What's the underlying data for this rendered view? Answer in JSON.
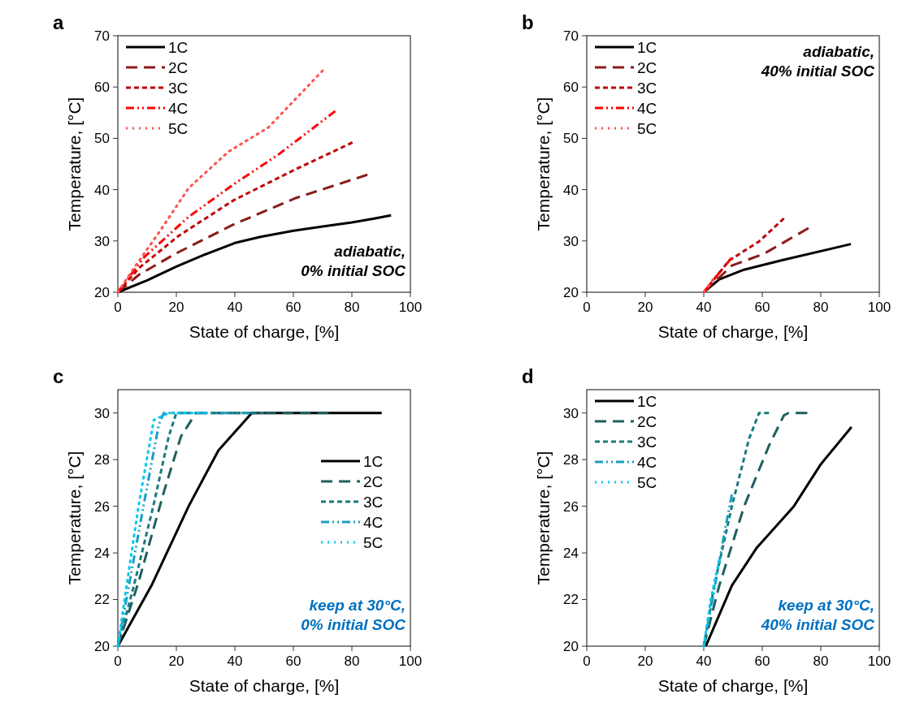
{
  "chart_data": [
    {
      "type": "line",
      "title": "a",
      "xlabel": "State of charge, [%]",
      "ylabel": "Temperature, [°C]",
      "xlim": [
        0,
        100
      ],
      "ylim": [
        20,
        70
      ],
      "xticks": [
        0,
        20,
        40,
        60,
        80,
        100
      ],
      "yticks": [
        20,
        30,
        40,
        50,
        60,
        70
      ],
      "legend": "top left",
      "annotations": [
        "adiabatic,",
        "0% initial SOC"
      ],
      "series": [
        {
          "name": "1C",
          "color": "#000000",
          "line_style": "solid",
          "x": [
            0,
            10,
            20,
            30,
            40,
            48.8,
            60,
            70,
            80,
            88,
            93.4
          ],
          "values": [
            20,
            22.3,
            25,
            27.4,
            29.6,
            30.8,
            32,
            32.8,
            33.6,
            34.4,
            35
          ]
        },
        {
          "name": "2C",
          "color": "#8b1a1a",
          "line_style": "dashed",
          "x": [
            0,
            7.2,
            20,
            39.5,
            61,
            85.3
          ],
          "values": [
            20,
            23.4,
            27.6,
            33.2,
            38.4,
            42.9
          ]
        },
        {
          "name": "3C",
          "color": "#c00000",
          "line_style": "shortdash",
          "x": [
            0,
            7.2,
            20.8,
            39.5,
            59.8,
            80.2
          ],
          "values": [
            20,
            24.7,
            31,
            37.9,
            43.7,
            49.2
          ]
        },
        {
          "name": "4C",
          "color": "#ff0000",
          "line_style": "dashdot",
          "x": [
            0,
            8.9,
            24.2,
            39.5,
            54.8,
            74.3
          ],
          "values": [
            20,
            26.8,
            34.7,
            41,
            46.8,
            55.3
          ]
        },
        {
          "name": "5C",
          "color": "#ff5050",
          "line_style": "dotted",
          "x": [
            0,
            5.5,
            14,
            24.2,
            37.8,
            51.4,
            70
          ],
          "values": [
            20,
            24.7,
            31.6,
            40.3,
            47.4,
            52.1,
            63.2
          ]
        }
      ]
    },
    {
      "type": "line",
      "title": "b",
      "xlabel": "State of charge, [%]",
      "ylabel": "Temperature, [°C]",
      "xlim": [
        0,
        100
      ],
      "ylim": [
        20,
        70
      ],
      "xticks": [
        0,
        20,
        40,
        60,
        80,
        100
      ],
      "yticks": [
        20,
        30,
        40,
        50,
        60,
        70
      ],
      "legend": "top left",
      "annotations": [
        "adiabatic,",
        "40% initial SOC"
      ],
      "series": [
        {
          "name": "1C",
          "color": "#000000",
          "line_style": "solid",
          "x": [
            40,
            45.3,
            53.8,
            66.5,
            90.3
          ],
          "values": [
            20,
            22.5,
            24.4,
            26.2,
            29.4
          ]
        },
        {
          "name": "2C",
          "color": "#8b1a1a",
          "line_style": "dashed",
          "x": [
            40,
            49.6,
            60.6,
            75.8
          ],
          "values": [
            20,
            25.2,
            27.5,
            32.5
          ]
        },
        {
          "name": "3C",
          "color": "#c00000",
          "line_style": "shortdash",
          "x": [
            40,
            48.7,
            58.9,
            67.4
          ],
          "values": [
            20,
            26.2,
            29.9,
            34.4
          ]
        },
        {
          "name": "4C",
          "color": "#ff0000",
          "line_style": "dashdot",
          "x": [
            40,
            45.3,
            49.5
          ],
          "values": [
            20,
            23.8,
            26.7
          ]
        },
        {
          "name": "5C",
          "color": "#ff5050",
          "line_style": "dotted",
          "x": [
            40,
            43.2
          ],
          "values": [
            20,
            22.5
          ]
        }
      ]
    },
    {
      "type": "line",
      "title": "c",
      "xlabel": "State of charge, [%]",
      "ylabel": "Temperature, [°C]",
      "xlim": [
        0,
        100
      ],
      "ylim": [
        20,
        31
      ],
      "xticks": [
        0,
        20,
        40,
        60,
        80,
        100
      ],
      "yticks": [
        20,
        22,
        24,
        26,
        28,
        30
      ],
      "legend": "right",
      "annotations": [
        "keep at 30°C,",
        "0% initial SOC"
      ],
      "series": [
        {
          "name": "1C",
          "color": "#000000",
          "line_style": "solid",
          "x": [
            0,
            11.5,
            24.2,
            34.4,
            45.8,
            90.2
          ],
          "values": [
            20,
            22.6,
            26,
            28.4,
            30,
            30
          ]
        },
        {
          "name": "2C",
          "color": "#1f5f5f",
          "line_style": "dashed",
          "x": [
            0,
            7.2,
            15.7,
            21.6,
            26.7,
            72
          ],
          "values": [
            20,
            22.8,
            26.6,
            29,
            30,
            30
          ]
        },
        {
          "name": "3C",
          "color": "#1a7a80",
          "line_style": "shortdash",
          "x": [
            0,
            5.5,
            12.3,
            17.4,
            20,
            50
          ],
          "values": [
            20,
            22.6,
            26.1,
            29,
            30,
            30
          ]
        },
        {
          "name": "4C",
          "color": "#1aa0c0",
          "line_style": "dashdot",
          "x": [
            0,
            3.8,
            8.9,
            14,
            15.7,
            45
          ],
          "values": [
            20,
            22.6,
            26.1,
            29.5,
            30,
            30
          ]
        },
        {
          "name": "5C",
          "color": "#00c8f0",
          "line_style": "dotted",
          "x": [
            0,
            3,
            7.2,
            12.3,
            17.4,
            30
          ],
          "values": [
            20,
            22.6,
            26.1,
            29.7,
            30,
            30
          ]
        }
      ]
    },
    {
      "type": "line",
      "title": "d",
      "xlabel": "State of charge, [%]",
      "ylabel": "Temperature, [°C]",
      "xlim": [
        0,
        100
      ],
      "ylim": [
        20,
        31
      ],
      "xticks": [
        0,
        20,
        40,
        60,
        80,
        100
      ],
      "yticks": [
        20,
        22,
        24,
        26,
        28,
        30
      ],
      "legend": "top left",
      "annotations": [
        "keep at 30°C,",
        "40% initial SOC"
      ],
      "series": [
        {
          "name": "1C",
          "color": "#000000",
          "line_style": "solid",
          "x": [
            40.7,
            49.6,
            58,
            70.8,
            80,
            90.5
          ],
          "values": [
            20,
            22.6,
            24.2,
            26,
            27.8,
            29.4
          ]
        },
        {
          "name": "2C",
          "color": "#1f5f5f",
          "line_style": "dashed",
          "x": [
            40,
            45.3,
            53.8,
            62.3,
            67.4,
            69,
            75.4
          ],
          "values": [
            20,
            22.6,
            26,
            28.6,
            29.9,
            30,
            30
          ]
        },
        {
          "name": "3C",
          "color": "#1a7a80",
          "line_style": "shortdash",
          "x": [
            40,
            43.6,
            49.6,
            55.5,
            58.9,
            62.3
          ],
          "values": [
            20,
            22.6,
            26,
            28.9,
            30,
            30
          ]
        },
        {
          "name": "4C",
          "color": "#1aa0c0",
          "line_style": "dashdot",
          "x": [
            40,
            43,
            47.1,
            49.6
          ],
          "values": [
            20,
            22,
            24.9,
            26.5
          ]
        },
        {
          "name": "5C",
          "color": "#00c8f0",
          "line_style": "dotted",
          "x": [
            40,
            42.4,
            45.3
          ],
          "values": [
            20,
            22,
            23.7
          ]
        }
      ]
    }
  ]
}
